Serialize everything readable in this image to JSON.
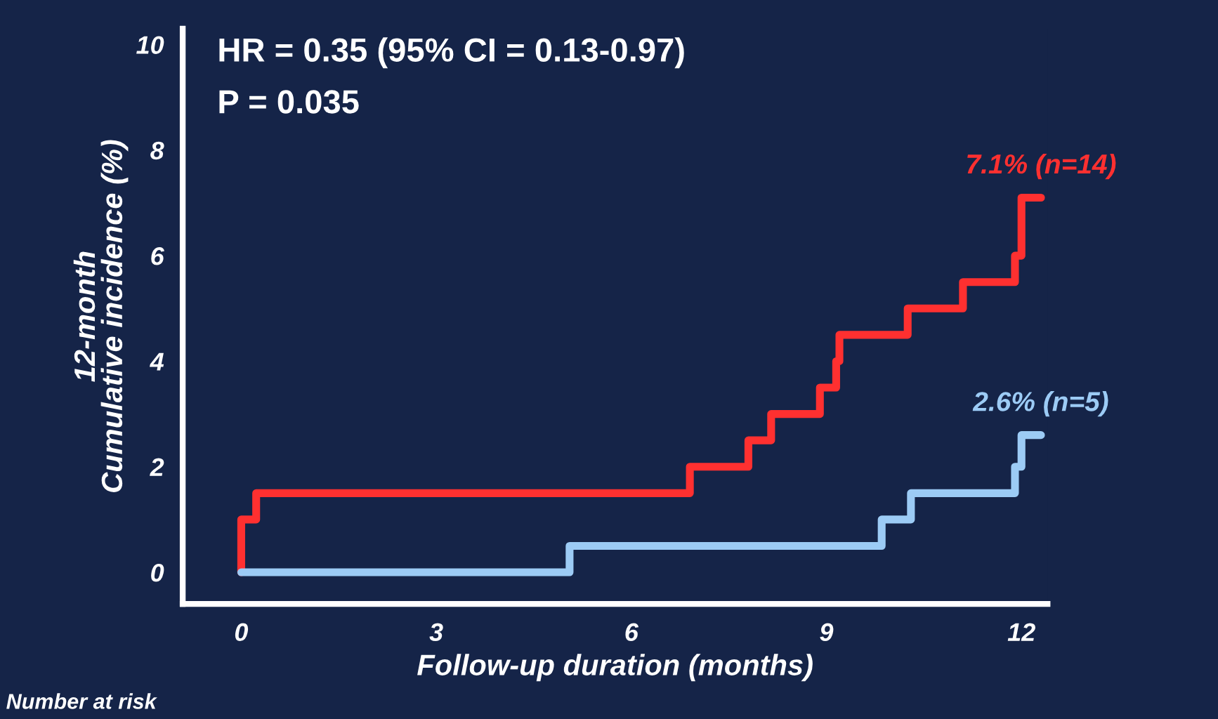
{
  "chart_data": {
    "type": "step",
    "xlabel": "Follow-up duration (months)",
    "ylabel": "12-month\nCumulative incidence (%)",
    "annotations": [
      "HR = 0.35 (95% CI = 0.13-0.97)",
      "P = 0.035",
      "Number at risk"
    ],
    "series": [
      {
        "color": "#ff3030",
        "x": [
          0,
          0,
          0.23,
          6.9,
          7.8,
          8.15,
          8.9,
          9.15,
          9.2,
          10.25,
          11.1,
          11.9,
          12.0,
          12.3
        ],
        "values": [
          0,
          1.0,
          1.5,
          2.0,
          2.5,
          3.0,
          3.5,
          4.0,
          4.5,
          5.0,
          5.5,
          6.0,
          7.1,
          7.1
        ],
        "value_labels": [
          null,
          null,
          null,
          null,
          null,
          null,
          null,
          null,
          null,
          null,
          null,
          null,
          null,
          "7.1% (n=14)"
        ]
      },
      {
        "color": "#9ccbf5",
        "x": [
          0,
          5.05,
          9.85,
          10.3,
          11.9,
          12.0,
          12.3
        ],
        "values": [
          0,
          0.5,
          1.0,
          1.5,
          2.0,
          2.6,
          2.6
        ],
        "value_labels": [
          null,
          null,
          null,
          null,
          null,
          null,
          "2.6% (n=5)"
        ]
      }
    ],
    "xlim": [
      -0.9,
      12.4
    ],
    "ylim": [
      -0.6,
      10.3
    ],
    "xticks": [
      0,
      3,
      6,
      9,
      12
    ],
    "yticks": [
      0,
      2,
      4,
      6,
      8,
      10
    ],
    "grid": false,
    "legend": false
  }
}
